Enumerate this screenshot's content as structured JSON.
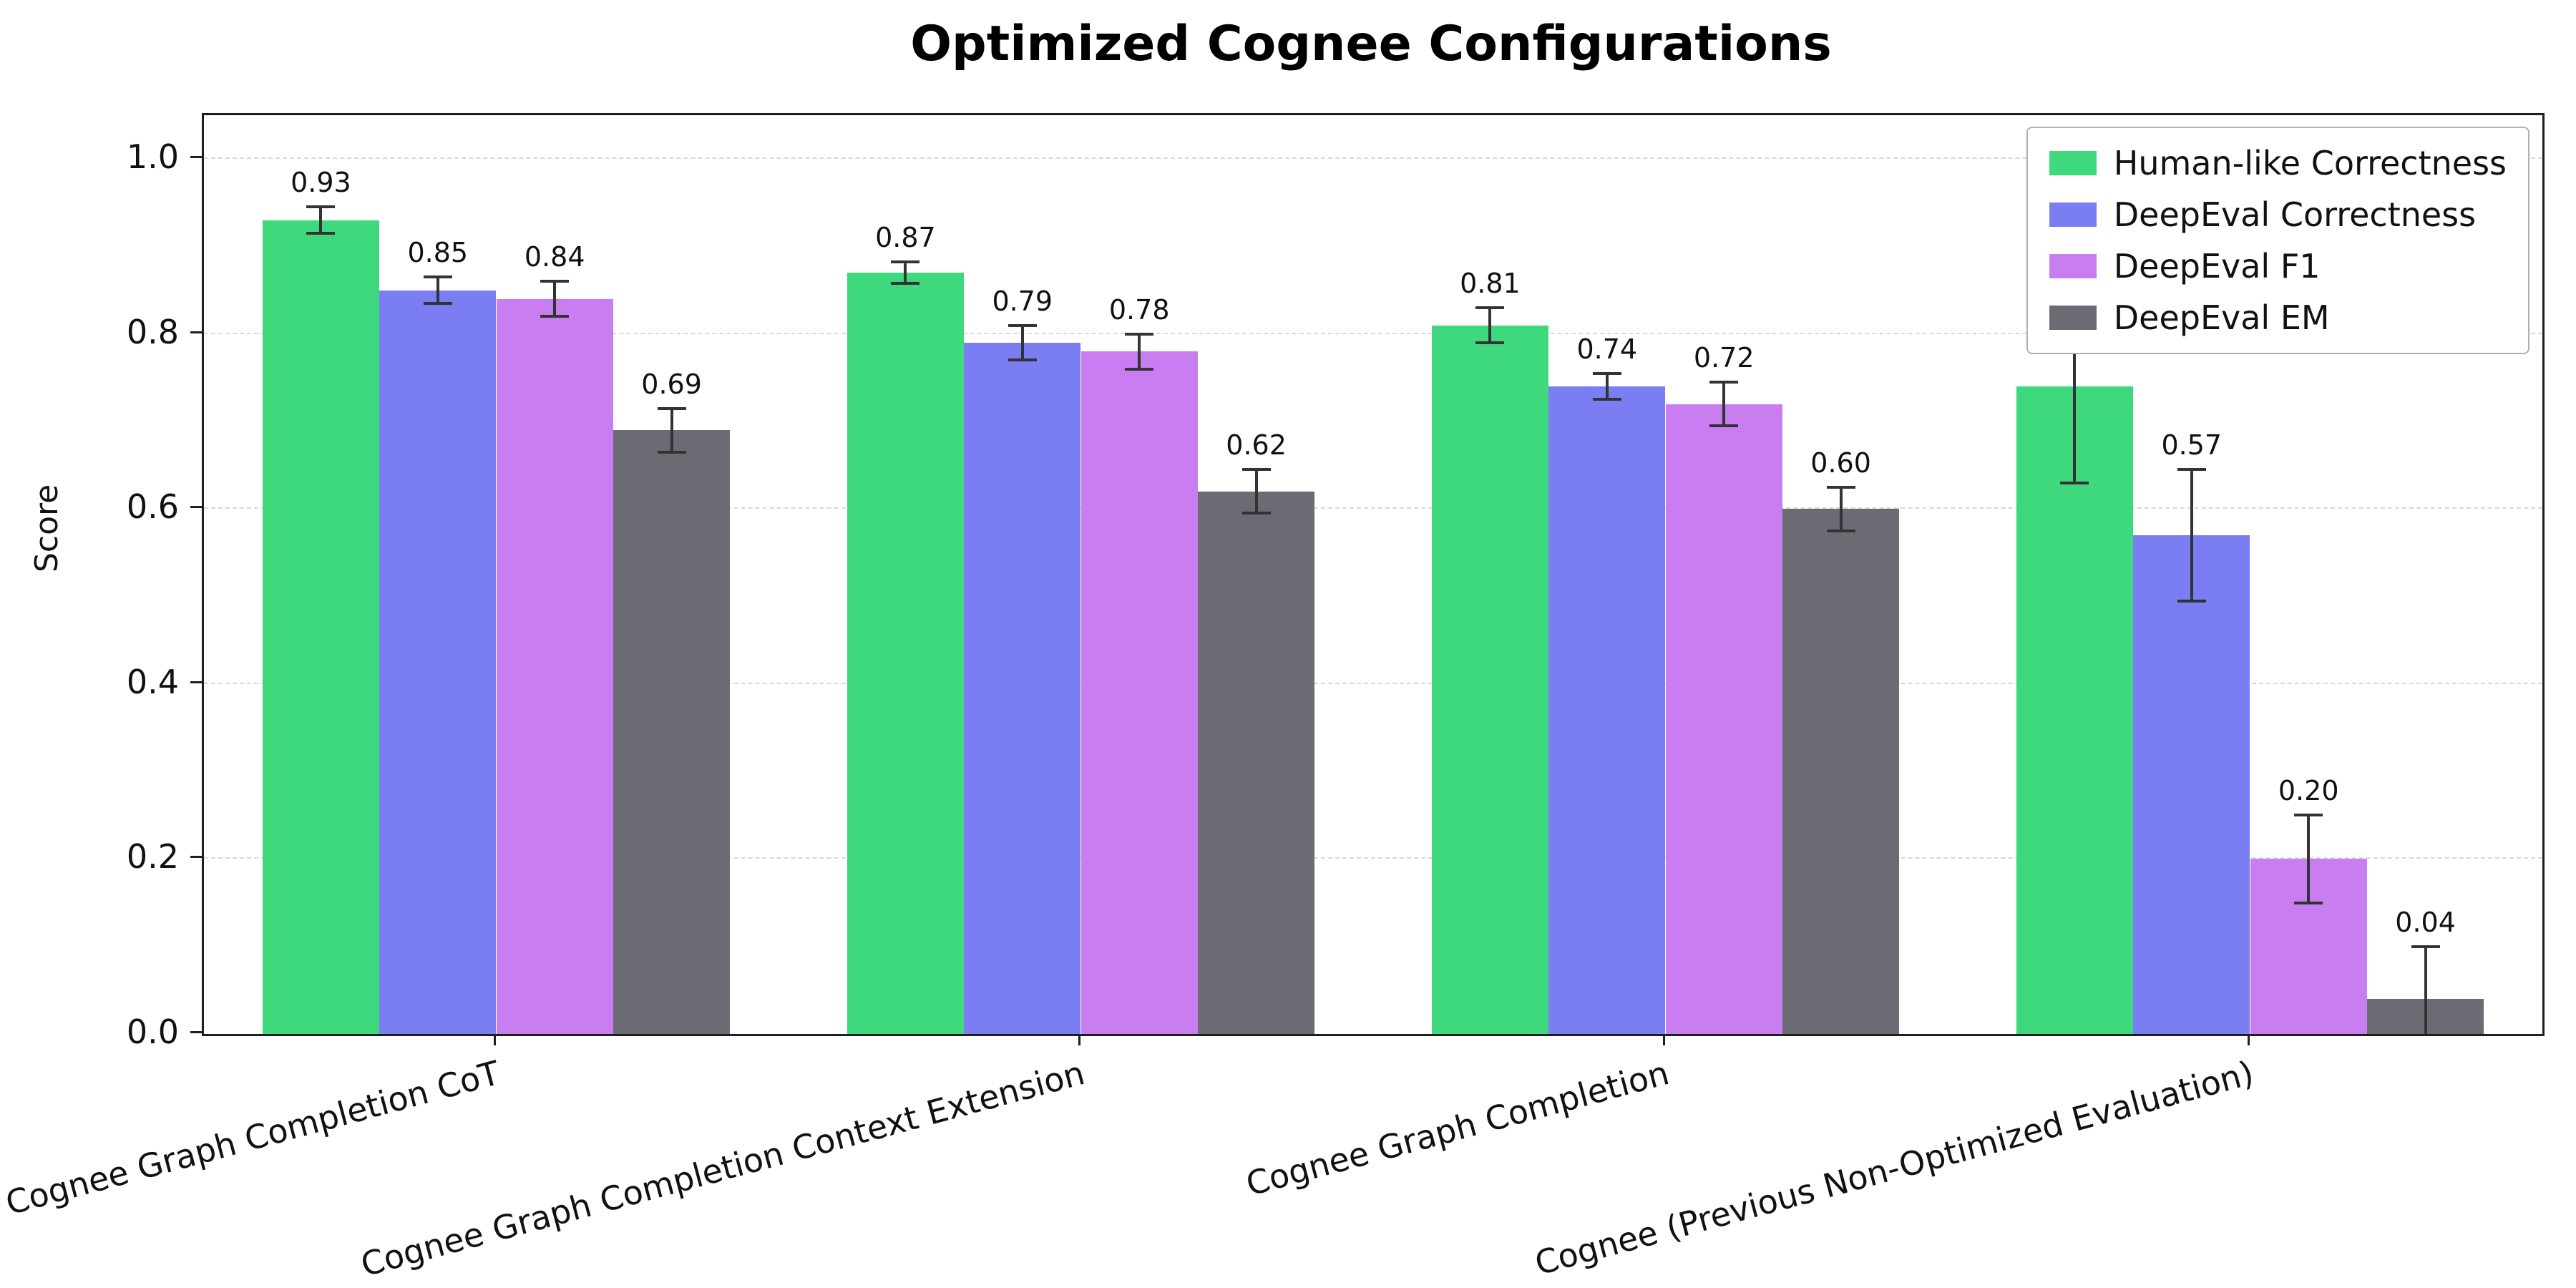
{
  "chart_data": {
    "type": "bar",
    "title": "Optimized Cognee Configurations",
    "xlabel": "",
    "ylabel": "Score",
    "ylim": [
      0,
      1.05
    ],
    "yticks": [
      0.0,
      0.2,
      0.4,
      0.6,
      0.8,
      1.0
    ],
    "grid": "horizontal-dashed",
    "legend_position": "upper right",
    "error_bars": true,
    "categories": [
      "Cognee Graph Completion CoT",
      "Cognee Graph Completion Context Extension",
      "Cognee Graph Completion",
      "Cognee (Previous Non-Optimized Evaluation)"
    ],
    "series": [
      {
        "name": "Human-like Correctness",
        "color": "#3ed97d",
        "values": [
          0.93,
          0.87,
          0.81,
          0.74
        ],
        "errors": [
          0.015,
          0.012,
          0.02,
          0.11
        ],
        "labels": [
          "0.93",
          "0.87",
          "0.81",
          "0.74"
        ]
      },
      {
        "name": "DeepEval Correctness",
        "color": "#7b7ef2",
        "values": [
          0.85,
          0.79,
          0.74,
          0.57
        ],
        "errors": [
          0.015,
          0.02,
          0.015,
          0.075
        ],
        "labels": [
          "0.85",
          "0.79",
          "0.74",
          "0.57"
        ]
      },
      {
        "name": "DeepEval F1",
        "color": "#c87ef0",
        "values": [
          0.84,
          0.78,
          0.72,
          0.2
        ],
        "errors": [
          0.02,
          0.02,
          0.025,
          0.05
        ],
        "labels": [
          "0.84",
          "0.78",
          "0.72",
          "0.20"
        ]
      },
      {
        "name": "DeepEval EM",
        "color": "#6b6b73",
        "values": [
          0.69,
          0.62,
          0.6,
          0.04
        ],
        "errors": [
          0.025,
          0.025,
          0.025,
          0.06
        ],
        "labels": [
          "0.69",
          "0.62",
          "0.60",
          "0.04"
        ]
      }
    ]
  }
}
